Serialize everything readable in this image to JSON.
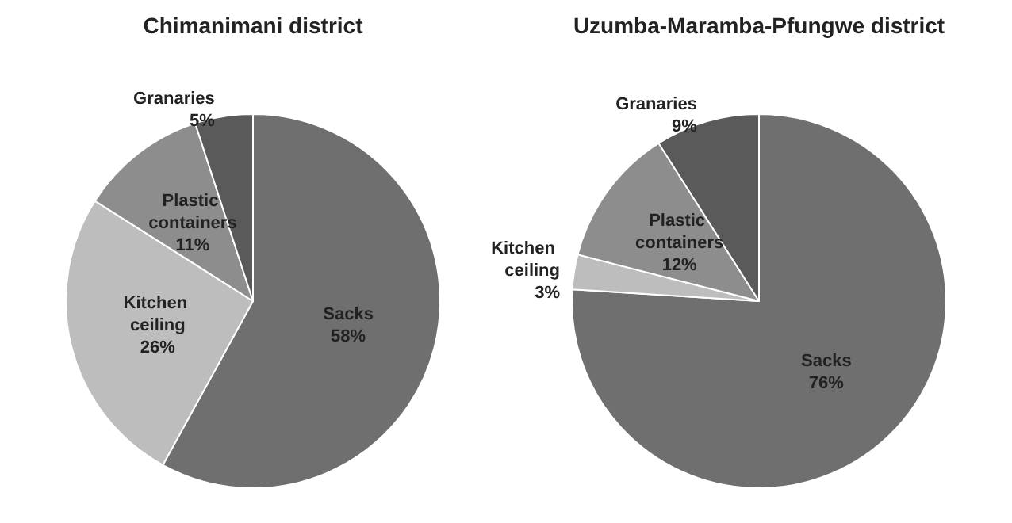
{
  "chart_data": [
    {
      "type": "pie",
      "title": "Chimanimani district",
      "categories": [
        "Sacks",
        "Kitchen ceiling",
        "Plastic containers",
        "Granaries"
      ],
      "values": [
        58,
        26,
        11,
        5
      ],
      "value_labels": [
        "58%",
        "26%",
        "11%",
        "5%"
      ],
      "colors": [
        "#6f6f6f",
        "#bdbdbd",
        "#8d8d8d",
        "#5a5a5a"
      ],
      "data_labels": true,
      "legend": false
    },
    {
      "type": "pie",
      "title": "Uzumba-Maramba-Pfungwe district",
      "categories": [
        "Sacks",
        "Kitchen ceiling",
        "Plastic containers",
        "Granaries"
      ],
      "values": [
        76,
        3,
        12,
        9
      ],
      "value_labels": [
        "76%",
        "3%",
        "12%",
        "9%"
      ],
      "colors": [
        "#6f6f6f",
        "#bdbdbd",
        "#8d8d8d",
        "#5a5a5a"
      ],
      "data_labels": true,
      "legend": false
    }
  ]
}
